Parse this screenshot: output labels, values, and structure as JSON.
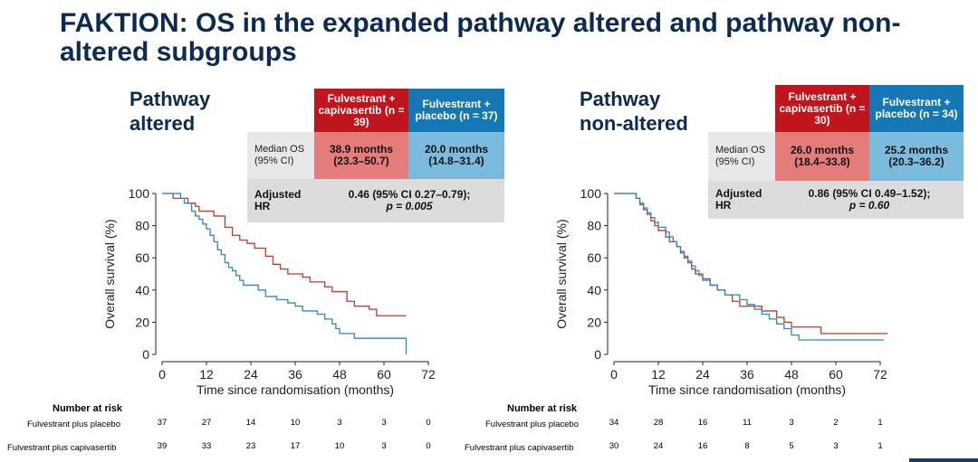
{
  "title": "FAKTION: OS in the expanded pathway altered and pathway non-altered subgroups",
  "colors": {
    "capivasertib": "#c0392b",
    "placebo": "#2e86c1",
    "title": "#0d2a52"
  },
  "panels": [
    {
      "name": "Pathway altered",
      "title_line1": "Pathway",
      "title_line2": "altered",
      "table": {
        "capi_header": "Fulvestrant + capivasertib (n = 39)",
        "placebo_header": "Fulvestrant + placebo (n = 37)",
        "median_label": "Median OS (95% CI)",
        "capi_median": "38.9 months (23.3–50.7)",
        "placebo_median": "20.0 months (14.8–31.4)",
        "hr_label": "Adjusted HR",
        "hr_value": "0.46 (95% CI 0.27–0.79);",
        "p_value": "p = 0.005"
      },
      "risk_header": "Number at risk",
      "risk_rows": [
        {
          "label": "Fulvestrant plus placebo",
          "values": [
            "37",
            "27",
            "14",
            "10",
            "3",
            "3",
            "0"
          ]
        },
        {
          "label": "Fulvestrant plus capivasertib",
          "values": [
            "39",
            "33",
            "23",
            "17",
            "10",
            "3",
            "0"
          ]
        }
      ]
    },
    {
      "name": "Pathway non-altered",
      "title_line1": "Pathway",
      "title_line2": "non-altered",
      "table": {
        "capi_header": "Fulvestrant + capivasertib (n = 30)",
        "placebo_header": "Fulvestrant + placebo (n = 34)",
        "median_label": "Median OS (95% CI)",
        "capi_median": "26.0 months (18.4–33.8)",
        "placebo_median": "25.2 months (20.3–36.2)",
        "hr_label": "Adjusted HR",
        "hr_value": "0.86 (95% CI 0.49–1.52);",
        "p_value": "p = 0.60"
      },
      "risk_header": "Number at risk",
      "risk_rows": [
        {
          "label": "Fulvestrant plus placebo",
          "values": [
            "34",
            "28",
            "16",
            "11",
            "3",
            "2",
            "1"
          ]
        },
        {
          "label": "Fulvestrant plus capivasertib",
          "values": [
            "30",
            "24",
            "16",
            "8",
            "5",
            "3",
            "1"
          ]
        }
      ]
    }
  ],
  "chart_data": [
    {
      "type": "line",
      "xlabel": "Time since randomisation (months)",
      "ylabel": "Overall survival (%)",
      "xlim": [
        0,
        72
      ],
      "ylim": [
        0,
        100
      ],
      "xticks": [
        0,
        12,
        24,
        36,
        48,
        60,
        72
      ],
      "yticks": [
        0,
        20,
        40,
        60,
        80,
        100
      ],
      "series": [
        {
          "name": "Fulvestrant + capivasertib",
          "color": "#c0392b",
          "x": [
            0,
            2,
            3,
            5,
            7,
            9,
            10,
            12,
            14,
            16,
            17,
            19,
            21,
            23,
            25,
            27,
            28,
            30,
            32,
            34,
            36,
            38,
            40,
            42,
            44,
            46,
            48,
            50,
            52,
            54,
            56,
            58,
            66
          ],
          "y": [
            100,
            100,
            97,
            97,
            94,
            92,
            89,
            89,
            86,
            86,
            79,
            74,
            71,
            69,
            66,
            66,
            61,
            56,
            53,
            50,
            50,
            48,
            45,
            45,
            42,
            39,
            39,
            33,
            30,
            30,
            28,
            24,
            24
          ]
        },
        {
          "name": "Fulvestrant + placebo",
          "color": "#2e86c1",
          "x": [
            0,
            3,
            5,
            6,
            8,
            9,
            10,
            11,
            12,
            13,
            14,
            15,
            16,
            17,
            18,
            19,
            20,
            21,
            22,
            24,
            26,
            28,
            31,
            32,
            34,
            36,
            38,
            40,
            42,
            44,
            46,
            47,
            48,
            50,
            52,
            54,
            65,
            66
          ],
          "y": [
            100,
            100,
            97,
            94,
            89,
            86,
            84,
            81,
            78,
            74,
            70,
            65,
            62,
            57,
            54,
            52,
            49,
            46,
            43,
            43,
            40,
            36,
            34,
            34,
            32,
            30,
            27,
            27,
            25,
            22,
            19,
            16,
            13,
            13,
            10,
            10,
            10,
            0
          ]
        }
      ]
    },
    {
      "type": "line",
      "xlabel": "Time since randomisation (months)",
      "ylabel": "Overall survival (%)",
      "xlim": [
        0,
        72
      ],
      "ylim": [
        0,
        100
      ],
      "xticks": [
        0,
        12,
        24,
        36,
        48,
        60,
        72
      ],
      "yticks": [
        0,
        20,
        40,
        60,
        80,
        100
      ],
      "series": [
        {
          "name": "Fulvestrant + capivasertib",
          "color": "#c0392b",
          "x": [
            0,
            5,
            6,
            7,
            8,
            9,
            10,
            11,
            12,
            13,
            14,
            15,
            16,
            17,
            18,
            19,
            20,
            21,
            22,
            24,
            26,
            28,
            30,
            32,
            34,
            36,
            40,
            42,
            44,
            46,
            48,
            56,
            74
          ],
          "y": [
            100,
            100,
            97,
            93,
            90,
            87,
            83,
            80,
            77,
            77,
            73,
            70,
            70,
            67,
            63,
            60,
            57,
            53,
            50,
            47,
            43,
            40,
            37,
            33,
            30,
            30,
            27,
            27,
            23,
            20,
            17,
            13,
            13
          ]
        },
        {
          "name": "Fulvestrant + placebo",
          "color": "#2e86c1",
          "x": [
            0,
            4,
            6,
            7,
            8,
            9,
            10,
            11,
            12,
            13,
            14,
            15,
            16,
            17,
            18,
            19,
            20,
            21,
            22,
            23,
            24,
            26,
            28,
            30,
            32,
            34,
            36,
            38,
            40,
            42,
            44,
            46,
            48,
            50,
            73
          ],
          "y": [
            100,
            100,
            97,
            94,
            91,
            88,
            85,
            82,
            79,
            79,
            76,
            73,
            70,
            67,
            64,
            61,
            58,
            55,
            52,
            49,
            46,
            43,
            40,
            37,
            37,
            34,
            31,
            28,
            25,
            22,
            19,
            16,
            12,
            9,
            9
          ]
        }
      ]
    }
  ]
}
